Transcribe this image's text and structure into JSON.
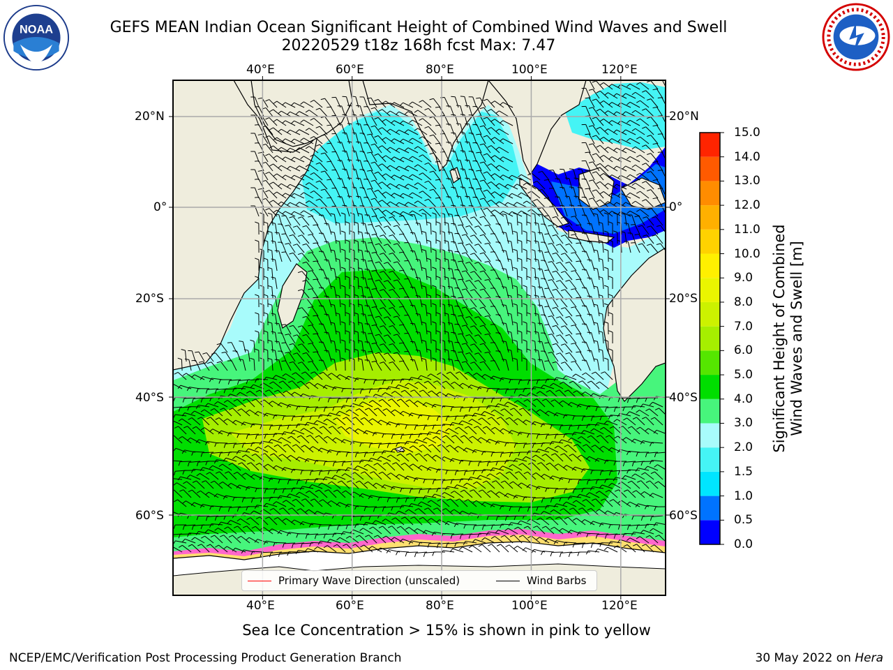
{
  "title_line1": "GEFS MEAN Indian Ocean Significant Height of Combined Wind Waves and Swell",
  "title_line2": "20220529 t18z 168h fcst   Max: 7.47",
  "map": {
    "lon_labels": [
      "40°E",
      "60°E",
      "80°E",
      "100°E",
      "120°E"
    ],
    "lon_values": [
      40,
      60,
      80,
      100,
      120
    ],
    "lat_labels": [
      "20°N",
      "0°",
      "20°S",
      "40°S",
      "60°S"
    ],
    "lat_values": [
      20,
      0,
      -20,
      -40,
      -60
    ],
    "lon_range": [
      20,
      130
    ],
    "colors": {
      "land": "#efeddd",
      "ice_pink": "#ff66cc",
      "ice_yellow": "#ffe070",
      "arrows": "#ff0000",
      "barbs": "#000000"
    }
  },
  "colorbar": {
    "title_line1": "Significant Height of Combined",
    "title_line2": "Wind Waves and Swell [m]",
    "tick_labels": [
      "0.0",
      "0.5",
      "1.0",
      "1.5",
      "2.0",
      "3.0",
      "4.0",
      "5.0",
      "6.0",
      "7.0",
      "8.0",
      "9.0",
      "10.0",
      "11.0",
      "12.0",
      "13.0",
      "14.0",
      "15.0"
    ],
    "levels": [
      0,
      0.5,
      1,
      1.5,
      2,
      3,
      4,
      5,
      6,
      7,
      8,
      9,
      10,
      11,
      12,
      13,
      14,
      15
    ],
    "colors": [
      "#0000ff",
      "#0073ff",
      "#00e5ff",
      "#45f4f5",
      "#a8fbfb",
      "#47f57c",
      "#00de00",
      "#55e600",
      "#a6ee00",
      "#ccf200",
      "#eaf500",
      "#fff000",
      "#ffd200",
      "#ffb000",
      "#ff8c00",
      "#ff5a00",
      "#ff2400"
    ]
  },
  "legend": {
    "wave_dir": "Primary Wave Direction (unscaled)",
    "barbs": "Wind Barbs"
  },
  "caption": "Sea Ice Concentration > 15% is shown in pink to yellow",
  "footer_left": "NCEP/EMC/Verification Post Processing Product Generation Branch",
  "footer_right_date": "30 May 2022 on ",
  "footer_right_machine": "Hera"
}
